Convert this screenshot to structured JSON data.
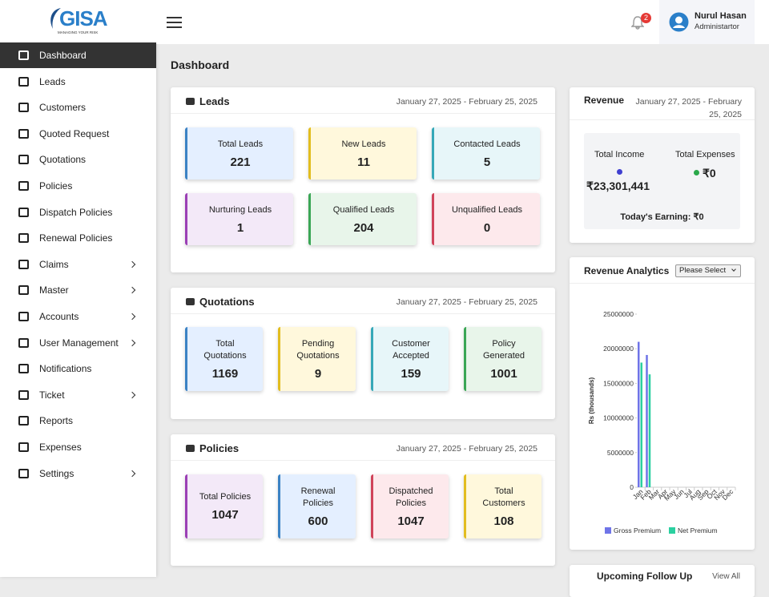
{
  "logo": {
    "text": "GISA",
    "tagline": "MANAGING YOUR RISK"
  },
  "header": {
    "notification_count": 2,
    "user_name": "Nurul Hasan",
    "user_role": "Administartor"
  },
  "sidebar": {
    "items": [
      {
        "label": "Dashboard",
        "has_submenu": false,
        "active": true
      },
      {
        "label": "Leads",
        "has_submenu": false
      },
      {
        "label": "Customers",
        "has_submenu": false
      },
      {
        "label": "Quoted Request",
        "has_submenu": false
      },
      {
        "label": "Quotations",
        "has_submenu": false
      },
      {
        "label": "Policies",
        "has_submenu": false
      },
      {
        "label": "Dispatch Policies",
        "has_submenu": false
      },
      {
        "label": "Renewal Policies",
        "has_submenu": false
      },
      {
        "label": "Claims",
        "has_submenu": true
      },
      {
        "label": "Master",
        "has_submenu": true
      },
      {
        "label": "Accounts",
        "has_submenu": true
      },
      {
        "label": "User Management",
        "has_submenu": true
      },
      {
        "label": "Notifications",
        "has_submenu": false
      },
      {
        "label": "Ticket",
        "has_submenu": true
      },
      {
        "label": "Reports",
        "has_submenu": false
      },
      {
        "label": "Expenses",
        "has_submenu": false
      },
      {
        "label": "Settings",
        "has_submenu": true
      }
    ]
  },
  "page_title": "Dashboard",
  "leads": {
    "title": "Leads",
    "date_range": "January 27, 2025 - February 25, 2025",
    "cards": [
      {
        "label": "Total Leads",
        "value": 221,
        "color": "#3b82c4",
        "bg": "#e4efff"
      },
      {
        "label": "New Leads",
        "value": 11,
        "color": "#e2bd1f",
        "bg": "#fff8dc"
      },
      {
        "label": "Contacted Leads",
        "value": 5,
        "color": "#36a8b8",
        "bg": "#e7f6f9"
      },
      {
        "label": "Nurturing Leads",
        "value": 1,
        "color": "#9b3fb5",
        "bg": "#f3e9f8"
      },
      {
        "label": "Qualified Leads",
        "value": 204,
        "color": "#3aa655",
        "bg": "#e8f5ea"
      },
      {
        "label": "Unqualified Leads",
        "value": 0,
        "color": "#d0435a",
        "bg": "#fde9ec"
      }
    ]
  },
  "quotations": {
    "title": "Quotations",
    "date_range": "January 27, 2025 - February 25, 2025",
    "cards": [
      {
        "label": "Total Quotations",
        "value": 1169,
        "color": "#3b82c4",
        "bg": "#e4efff"
      },
      {
        "label": "Pending Quotations",
        "value": 9,
        "color": "#e2bd1f",
        "bg": "#fff8dc"
      },
      {
        "label": "Customer Accepted",
        "value": 159,
        "color": "#36a8b8",
        "bg": "#e7f6f9"
      },
      {
        "label": "Policy Generated",
        "value": 1001,
        "color": "#3aa655",
        "bg": "#e8f5ea"
      }
    ]
  },
  "policies": {
    "title": "Policies",
    "date_range": "January 27, 2025 - February 25, 2025",
    "cards": [
      {
        "label": "Total Policies",
        "value": 1047,
        "color": "#9b3fb5",
        "bg": "#f3e9f8"
      },
      {
        "label": "Renewal Policies",
        "value": 600,
        "color": "#3b82c4",
        "bg": "#e4efff"
      },
      {
        "label": "Dispatched Policies",
        "value": 1047,
        "color": "#d0435a",
        "bg": "#fde9ec"
      },
      {
        "label": "Total Customers",
        "value": 108,
        "color": "#e2bd1f",
        "bg": "#fff8dc"
      }
    ]
  },
  "revenue": {
    "title": "Revenue",
    "date_range": "January 27, 2025 - February 25, 2025",
    "total_income_label": "Total Income",
    "total_income": "₹23,301,441",
    "total_expenses_label": "Total Expenses",
    "total_expenses": "₹0",
    "todays_earning": "Today's Earning: ₹0"
  },
  "revenue_analytics": {
    "title": "Revenue Analytics",
    "select": "Please Select"
  },
  "chart_data": {
    "type": "bar",
    "ylabel": "Rs (thousands)",
    "categories": [
      "Jan",
      "Feb",
      "Mar",
      "Apr",
      "May",
      "Jun",
      "Jul",
      "Aug",
      "Sep",
      "Oct",
      "Nov",
      "Dec"
    ],
    "series": [
      {
        "name": "Gross Premium",
        "color": "#6f74e8",
        "values": [
          21000000,
          19100000,
          0,
          0,
          0,
          0,
          0,
          0,
          0,
          0,
          0,
          0
        ]
      },
      {
        "name": "Net Premium",
        "color": "#2bd0a0",
        "values": [
          18000000,
          16300000,
          0,
          0,
          0,
          0,
          0,
          0,
          0,
          0,
          0,
          0
        ]
      }
    ],
    "ylim": [
      0,
      25000000
    ],
    "yticks": [
      0,
      5000000,
      10000000,
      15000000,
      20000000,
      25000000
    ],
    "legend": "bottom"
  },
  "upcoming": {
    "title": "Upcoming Follow Up",
    "link": "View All"
  }
}
